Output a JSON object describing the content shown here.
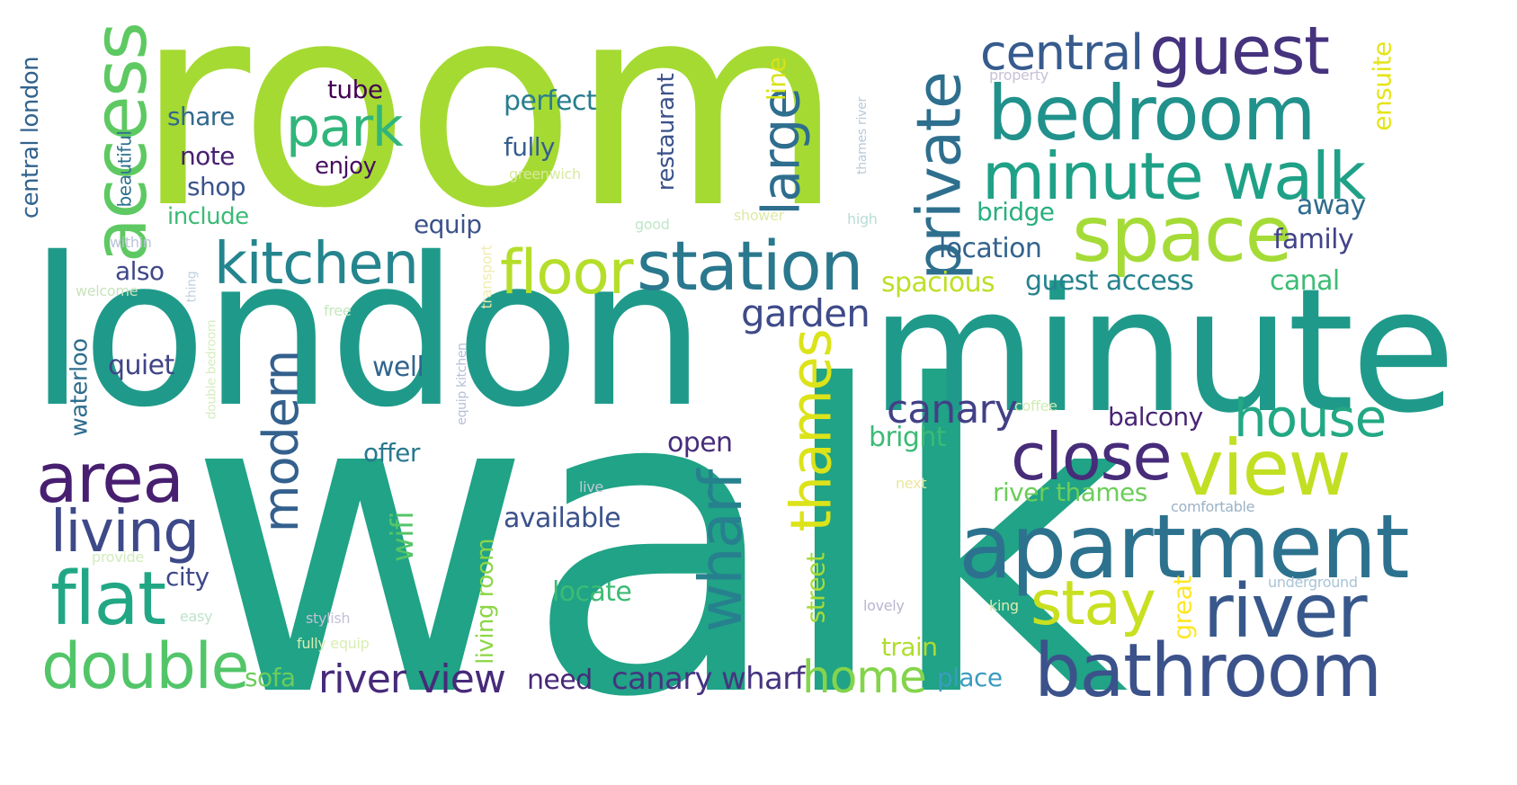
{
  "words": [
    {
      "text": "room",
      "color": "#a5da33",
      "orient": "h"
    },
    {
      "text": "walk",
      "color": "#20a386",
      "orient": "h"
    },
    {
      "text": "london",
      "color": "#1f9a8a",
      "orient": "h"
    },
    {
      "text": "minute",
      "color": "#1f9a8a",
      "orient": "h"
    },
    {
      "text": "apartment",
      "color": "#2c728e",
      "orient": "h"
    },
    {
      "text": "bathroom",
      "color": "#3b528b",
      "orient": "h"
    },
    {
      "text": "bedroom",
      "color": "#21918c",
      "orient": "h"
    },
    {
      "text": "minute walk",
      "color": "#1fa187",
      "orient": "h"
    },
    {
      "text": "space",
      "color": "#a5db36",
      "orient": "h"
    },
    {
      "text": "guest",
      "color": "#46337e",
      "orient": "h"
    },
    {
      "text": "central",
      "color": "#375b8d",
      "orient": "h"
    },
    {
      "text": "station",
      "color": "#2a788e",
      "orient": "h"
    },
    {
      "text": "kitchen",
      "color": "#25858e",
      "orient": "h"
    },
    {
      "text": "floor",
      "color": "#b5de2b",
      "orient": "h"
    },
    {
      "text": "access",
      "color": "#5ec962",
      "orient": "v"
    },
    {
      "text": "private",
      "color": "#2e6f8e",
      "orient": "v"
    },
    {
      "text": "park",
      "color": "#31b57b",
      "orient": "h"
    },
    {
      "text": "large",
      "color": "#2e6e8e",
      "orient": "v"
    },
    {
      "text": "area",
      "color": "#481f70",
      "orient": "h"
    },
    {
      "text": "living",
      "color": "#3e4989",
      "orient": "h"
    },
    {
      "text": "flat",
      "color": "#22a785",
      "orient": "h"
    },
    {
      "text": "double",
      "color": "#52c569",
      "orient": "h"
    },
    {
      "text": "close",
      "color": "#472c7a",
      "orient": "h"
    },
    {
      "text": "view",
      "color": "#c2df23",
      "orient": "h"
    },
    {
      "text": "house",
      "color": "#22a884",
      "orient": "h"
    },
    {
      "text": "river",
      "color": "#38588c",
      "orient": "h"
    },
    {
      "text": "stay",
      "color": "#c8e020",
      "orient": "h"
    },
    {
      "text": "thames",
      "color": "#dce319",
      "orient": "v"
    },
    {
      "text": "wharf",
      "color": "#27808e",
      "orient": "v"
    },
    {
      "text": "modern",
      "color": "#34608d",
      "orient": "v"
    },
    {
      "text": "river view",
      "color": "#472a7a",
      "orient": "h"
    },
    {
      "text": "home",
      "color": "#84d44b",
      "orient": "h"
    },
    {
      "text": "canary",
      "color": "#424086",
      "orient": "h"
    },
    {
      "text": "garden",
      "color": "#3e4a89",
      "orient": "h"
    },
    {
      "text": "canary wharf",
      "color": "#463480",
      "orient": "h"
    },
    {
      "text": "central london",
      "color": "#33638d",
      "orient": "v"
    },
    {
      "text": "tube",
      "color": "#440154",
      "orient": "h"
    },
    {
      "text": "perfect",
      "color": "#287d8e",
      "orient": "h"
    },
    {
      "text": "share",
      "color": "#31688e",
      "orient": "h"
    },
    {
      "text": "note",
      "color": "#482071",
      "orient": "h"
    },
    {
      "text": "enjoy",
      "color": "#470e61",
      "orient": "h"
    },
    {
      "text": "fully",
      "color": "#355e8d",
      "orient": "h"
    },
    {
      "text": "shop",
      "color": "#3a548c",
      "orient": "h"
    },
    {
      "text": "include",
      "color": "#3bbb75",
      "orient": "h"
    },
    {
      "text": "beautiful",
      "color": "#2d718e",
      "orient": "v"
    },
    {
      "text": "equip",
      "color": "#3b528b",
      "orient": "h"
    },
    {
      "text": "also",
      "color": "#3f4788",
      "orient": "h"
    },
    {
      "text": "quiet",
      "color": "#414487",
      "orient": "h"
    },
    {
      "text": "well",
      "color": "#32658e",
      "orient": "h"
    },
    {
      "text": "waterloo",
      "color": "#2e6d8e",
      "orient": "v"
    },
    {
      "text": "offer",
      "color": "#2a788e",
      "orient": "h"
    },
    {
      "text": "open",
      "color": "#472d7b",
      "orient": "h"
    },
    {
      "text": "available",
      "color": "#3b528b",
      "orient": "h"
    },
    {
      "text": "city",
      "color": "#3f4889",
      "orient": "h"
    },
    {
      "text": "wifi",
      "color": "#54c568",
      "orient": "v"
    },
    {
      "text": "locate",
      "color": "#3cbb75",
      "orient": "h"
    },
    {
      "text": "living room",
      "color": "#8bd646",
      "orient": "v"
    },
    {
      "text": "sofa",
      "color": "#6ccd5a",
      "orient": "h"
    },
    {
      "text": "need",
      "color": "#482878",
      "orient": "h"
    },
    {
      "text": "restaurant",
      "color": "#3b528b",
      "orient": "v"
    },
    {
      "text": "line",
      "color": "#d8e219",
      "orient": "v"
    },
    {
      "text": "greenwich",
      "color": "#d8e9a0",
      "orient": "h"
    },
    {
      "text": "thames river",
      "color": "#b8c9d8",
      "orient": "v"
    },
    {
      "text": "property",
      "color": "#c9c0d8",
      "orient": "h"
    },
    {
      "text": "ensuite",
      "color": "#e5e419",
      "orient": "v"
    },
    {
      "text": "bridge",
      "color": "#29af7f",
      "orient": "h"
    },
    {
      "text": "away",
      "color": "#2f6b8e",
      "orient": "h"
    },
    {
      "text": "family",
      "color": "#414487",
      "orient": "h"
    },
    {
      "text": "location",
      "color": "#33638d",
      "orient": "h"
    },
    {
      "text": "spacious",
      "color": "#bddf26",
      "orient": "h"
    },
    {
      "text": "guest access",
      "color": "#26828e",
      "orient": "h"
    },
    {
      "text": "canal",
      "color": "#3dbc74",
      "orient": "h"
    },
    {
      "text": "balcony",
      "color": "#482475",
      "orient": "h"
    },
    {
      "text": "bright",
      "color": "#3bbb75",
      "orient": "h"
    },
    {
      "text": "river thames",
      "color": "#6ccd5a",
      "orient": "h"
    },
    {
      "text": "street",
      "color": "#a5db36",
      "orient": "v"
    },
    {
      "text": "train",
      "color": "#b0dd2f",
      "orient": "h"
    },
    {
      "text": "place",
      "color": "#3b9cc0",
      "orient": "h"
    },
    {
      "text": "great",
      "color": "#fde725",
      "orient": "v"
    },
    {
      "text": "underground",
      "color": "#a8c4d6",
      "orient": "h"
    },
    {
      "text": "comfortable",
      "color": "#9ab2c6",
      "orient": "h"
    },
    {
      "text": "coffee",
      "color": "#d2ebb3",
      "orient": "h"
    },
    {
      "text": "next",
      "color": "#eae6a0",
      "orient": "h"
    },
    {
      "text": "king",
      "color": "#dcecb2",
      "orient": "h"
    },
    {
      "text": "lovely",
      "color": "#b8b4d0",
      "orient": "h"
    },
    {
      "text": "good",
      "color": "#bfe6c9",
      "orient": "h"
    },
    {
      "text": "shower",
      "color": "#dde9a6",
      "orient": "h"
    },
    {
      "text": "high",
      "color": "#b9dcd6",
      "orient": "h"
    },
    {
      "text": "within",
      "color": "#bcc3da",
      "orient": "h"
    },
    {
      "text": "welcome",
      "color": "#c9e3bd",
      "orient": "h"
    },
    {
      "text": "thing",
      "color": "#c0d0de",
      "orient": "v"
    },
    {
      "text": "free",
      "color": "#c6e7bf",
      "orient": "h"
    },
    {
      "text": "transport",
      "color": "#f0ebb0",
      "orient": "v"
    },
    {
      "text": "double bedroom",
      "color": "#d7ecc0",
      "orient": "v"
    },
    {
      "text": "equip kitchen",
      "color": "#b5bed4",
      "orient": "v"
    },
    {
      "text": "live",
      "color": "#c1c8da",
      "orient": "h"
    },
    {
      "text": "provide",
      "color": "#d1ebbd",
      "orient": "h"
    },
    {
      "text": "easy",
      "color": "#bde3cc",
      "orient": "h"
    },
    {
      "text": "stylish",
      "color": "#c4c0d8",
      "orient": "h"
    },
    {
      "text": "fully equip",
      "color": "#d9edb2",
      "orient": "h"
    }
  ]
}
